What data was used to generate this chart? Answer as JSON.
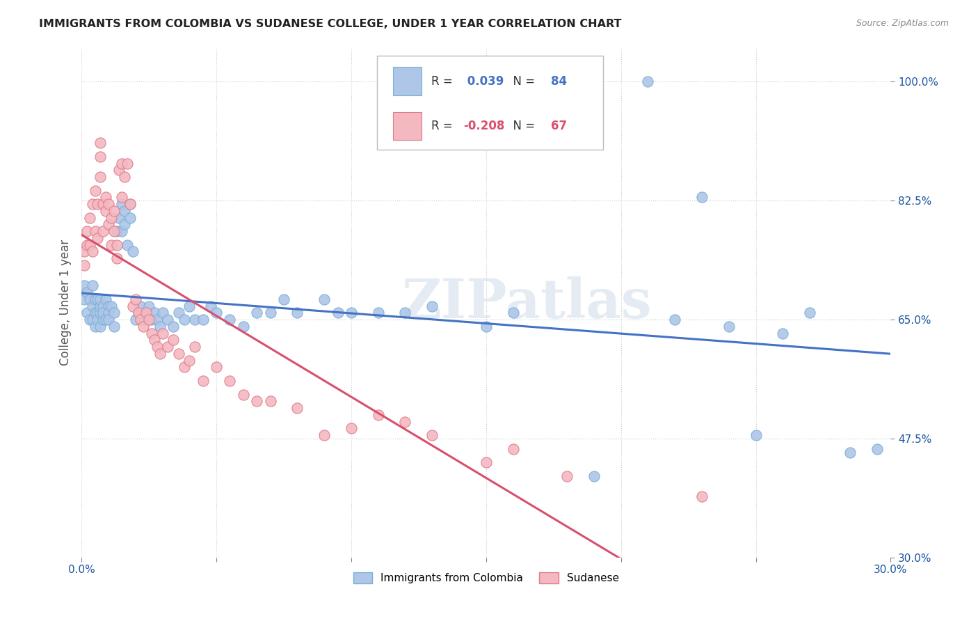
{
  "title": "IMMIGRANTS FROM COLOMBIA VS SUDANESE COLLEGE, UNDER 1 YEAR CORRELATION CHART",
  "source": "Source: ZipAtlas.com",
  "ylabel": "College, Under 1 year",
  "xlim": [
    0.0,
    0.3
  ],
  "ylim": [
    0.3,
    1.05
  ],
  "xticks": [
    0.0,
    0.05,
    0.1,
    0.15,
    0.2,
    0.25,
    0.3
  ],
  "xticklabels": [
    "0.0%",
    "",
    "",
    "",
    "",
    "",
    "30.0%"
  ],
  "ytick_positions": [
    0.3,
    0.475,
    0.65,
    0.825,
    1.0
  ],
  "yticklabels": [
    "30.0%",
    "47.5%",
    "65.0%",
    "82.5%",
    "100.0%"
  ],
  "colombia_R": 0.039,
  "colombia_N": 84,
  "sudanese_R": -0.208,
  "sudanese_N": 67,
  "colombia_color": "#aec6e8",
  "colombia_edge": "#7aafd4",
  "sudanese_color": "#f4b8c1",
  "sudanese_edge": "#e07a8a",
  "trendline_colombia_color": "#4472c4",
  "trendline_sudanese_color": "#d94f6e",
  "watermark": "ZIPatlas",
  "colombia_x": [
    0.001,
    0.001,
    0.002,
    0.002,
    0.003,
    0.003,
    0.004,
    0.004,
    0.004,
    0.005,
    0.005,
    0.005,
    0.006,
    0.006,
    0.006,
    0.007,
    0.007,
    0.007,
    0.007,
    0.008,
    0.008,
    0.008,
    0.009,
    0.009,
    0.01,
    0.01,
    0.01,
    0.011,
    0.012,
    0.012,
    0.013,
    0.014,
    0.015,
    0.015,
    0.016,
    0.016,
    0.017,
    0.018,
    0.018,
    0.019,
    0.02,
    0.021,
    0.022,
    0.023,
    0.024,
    0.025,
    0.026,
    0.027,
    0.028,
    0.029,
    0.03,
    0.032,
    0.034,
    0.036,
    0.038,
    0.04,
    0.042,
    0.045,
    0.048,
    0.05,
    0.055,
    0.06,
    0.065,
    0.07,
    0.075,
    0.08,
    0.09,
    0.095,
    0.1,
    0.11,
    0.12,
    0.13,
    0.15,
    0.16,
    0.19,
    0.21,
    0.23,
    0.25,
    0.27,
    0.285,
    0.22,
    0.24,
    0.26,
    0.295
  ],
  "colombia_y": [
    0.68,
    0.7,
    0.66,
    0.69,
    0.65,
    0.68,
    0.67,
    0.65,
    0.7,
    0.66,
    0.68,
    0.64,
    0.66,
    0.68,
    0.65,
    0.66,
    0.67,
    0.64,
    0.68,
    0.65,
    0.67,
    0.66,
    0.65,
    0.68,
    0.67,
    0.66,
    0.65,
    0.67,
    0.66,
    0.64,
    0.78,
    0.8,
    0.82,
    0.78,
    0.81,
    0.79,
    0.76,
    0.8,
    0.82,
    0.75,
    0.65,
    0.66,
    0.67,
    0.65,
    0.66,
    0.67,
    0.65,
    0.66,
    0.65,
    0.64,
    0.66,
    0.65,
    0.64,
    0.66,
    0.65,
    0.67,
    0.65,
    0.65,
    0.67,
    0.66,
    0.65,
    0.64,
    0.66,
    0.66,
    0.68,
    0.66,
    0.68,
    0.66,
    0.66,
    0.66,
    0.66,
    0.67,
    0.64,
    0.66,
    0.42,
    1.0,
    0.83,
    0.48,
    0.66,
    0.455,
    0.65,
    0.64,
    0.63,
    0.46
  ],
  "sudanese_x": [
    0.001,
    0.001,
    0.002,
    0.002,
    0.003,
    0.003,
    0.004,
    0.004,
    0.005,
    0.005,
    0.006,
    0.006,
    0.007,
    0.007,
    0.007,
    0.008,
    0.008,
    0.009,
    0.009,
    0.01,
    0.01,
    0.011,
    0.011,
    0.012,
    0.012,
    0.013,
    0.013,
    0.014,
    0.015,
    0.015,
    0.016,
    0.017,
    0.018,
    0.019,
    0.02,
    0.021,
    0.022,
    0.023,
    0.024,
    0.025,
    0.026,
    0.027,
    0.028,
    0.029,
    0.03,
    0.032,
    0.034,
    0.036,
    0.038,
    0.04,
    0.042,
    0.045,
    0.05,
    0.055,
    0.06,
    0.065,
    0.07,
    0.08,
    0.09,
    0.1,
    0.11,
    0.12,
    0.13,
    0.15,
    0.16,
    0.18,
    0.23
  ],
  "sudanese_y": [
    0.75,
    0.73,
    0.78,
    0.76,
    0.76,
    0.8,
    0.75,
    0.82,
    0.78,
    0.84,
    0.82,
    0.77,
    0.86,
    0.89,
    0.91,
    0.78,
    0.82,
    0.83,
    0.81,
    0.82,
    0.79,
    0.8,
    0.76,
    0.81,
    0.78,
    0.76,
    0.74,
    0.87,
    0.88,
    0.83,
    0.86,
    0.88,
    0.82,
    0.67,
    0.68,
    0.66,
    0.65,
    0.64,
    0.66,
    0.65,
    0.63,
    0.62,
    0.61,
    0.6,
    0.63,
    0.61,
    0.62,
    0.6,
    0.58,
    0.59,
    0.61,
    0.56,
    0.58,
    0.56,
    0.54,
    0.53,
    0.53,
    0.52,
    0.48,
    0.49,
    0.51,
    0.5,
    0.48,
    0.44,
    0.46,
    0.42,
    0.39
  ]
}
